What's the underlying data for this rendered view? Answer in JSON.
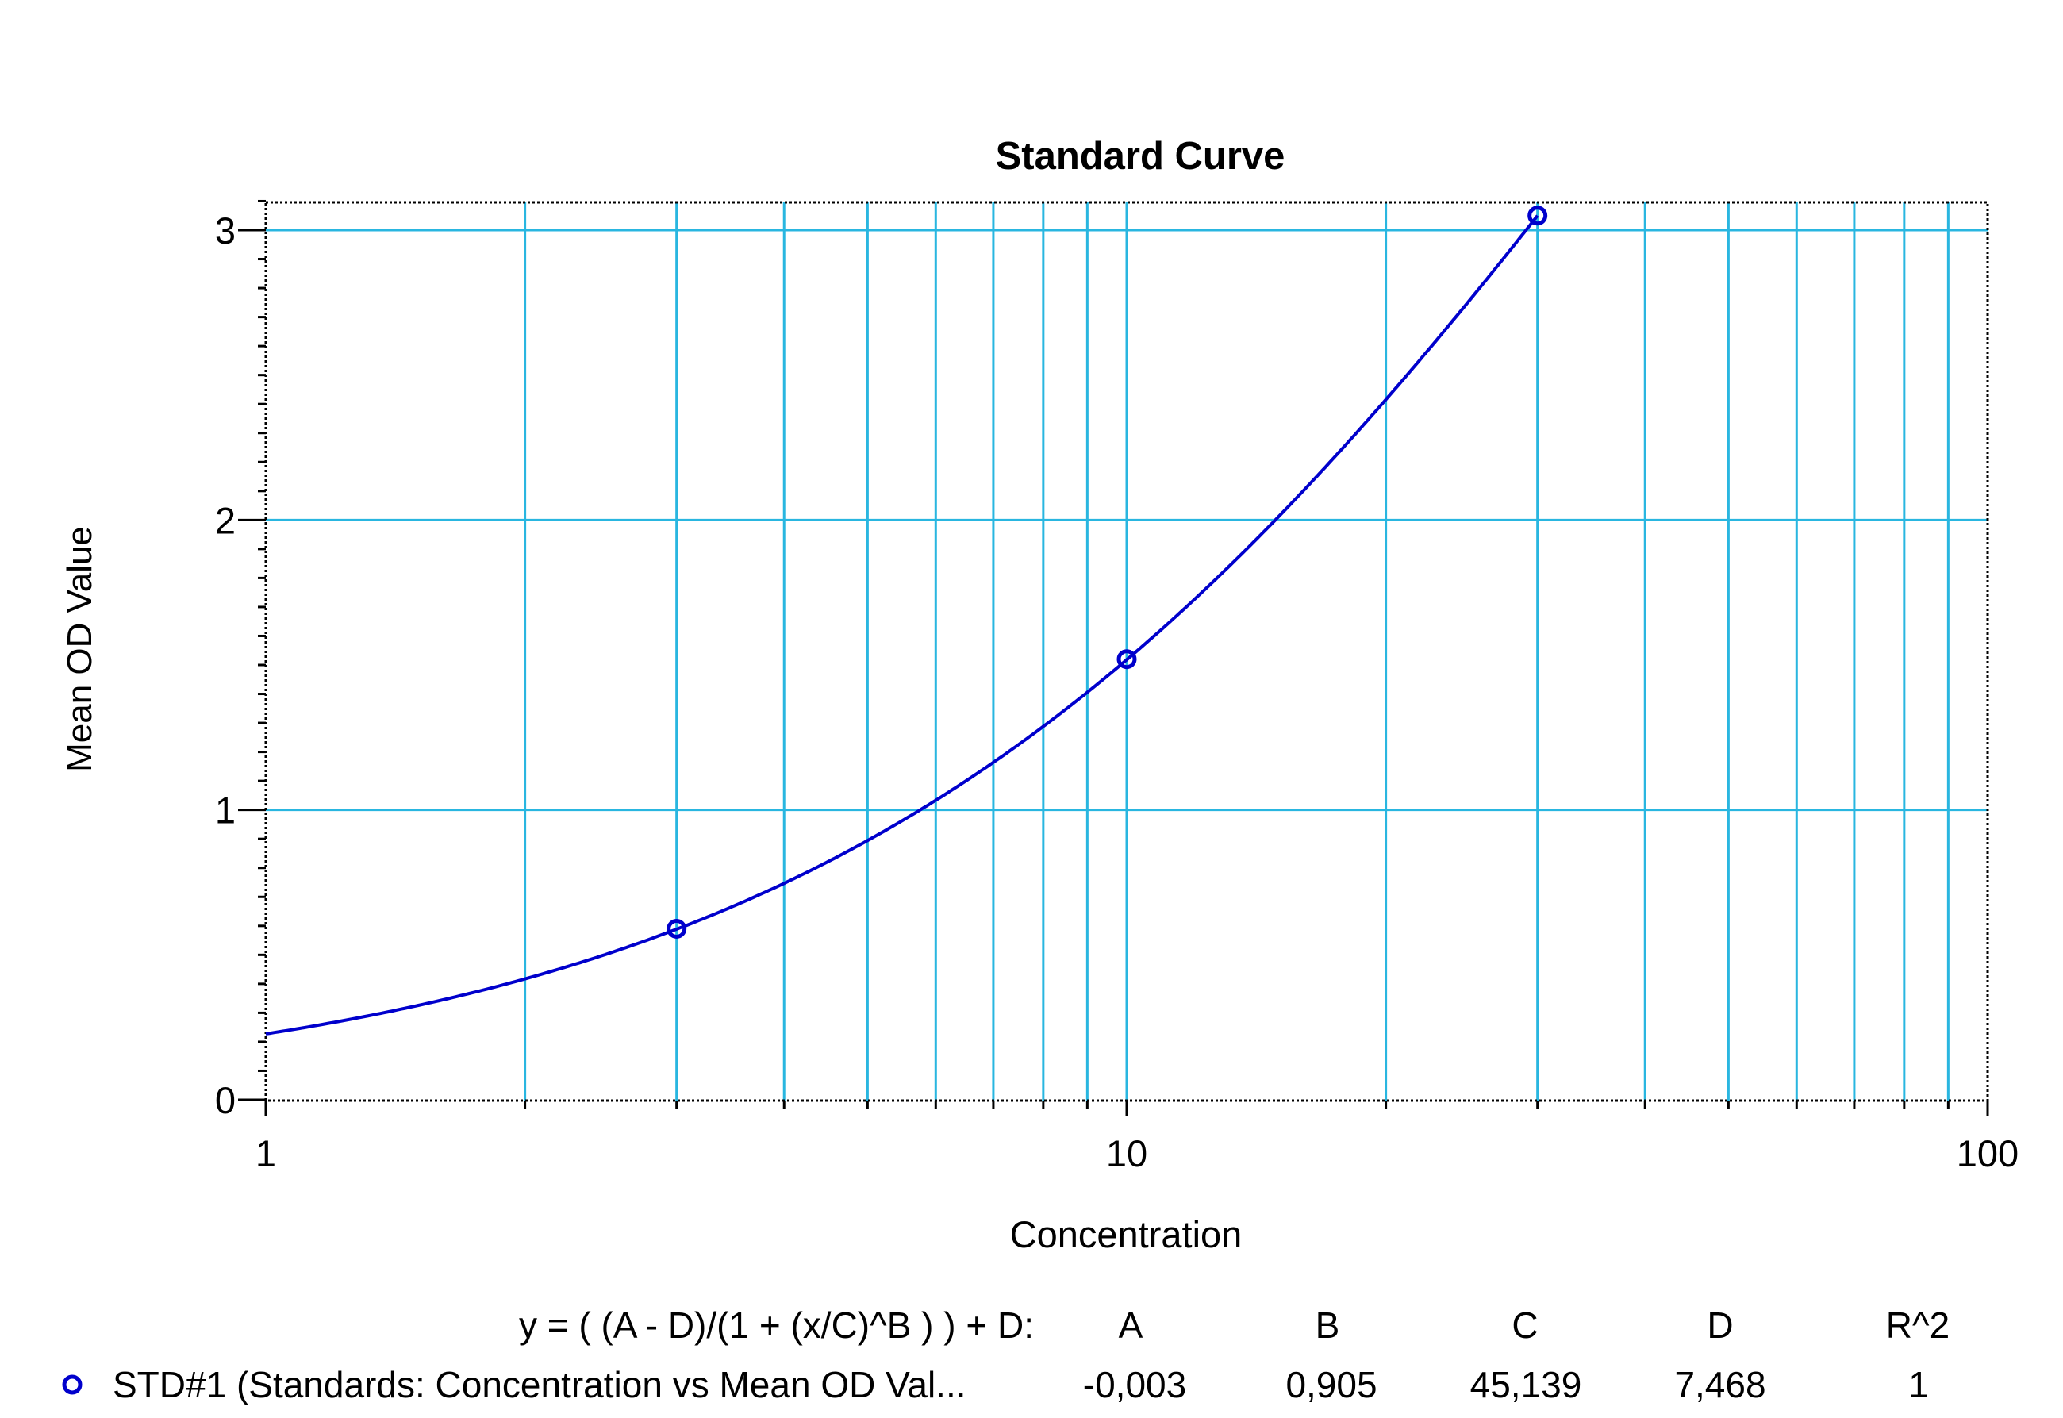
{
  "chart_data": {
    "type": "scatter",
    "title": "Standard Curve",
    "xlabel": "Concentration",
    "ylabel": "Mean OD Value",
    "x_scale": "log",
    "xlim": [
      1,
      100
    ],
    "ylim": [
      0,
      3.1
    ],
    "x_ticks": [
      "1",
      "10",
      "100"
    ],
    "y_ticks": [
      "0",
      "1",
      "2",
      "3"
    ],
    "grid": true,
    "colors": {
      "series": "#0000cc",
      "grid": "#29b6e0",
      "axis": "#000000",
      "text": "#000000"
    },
    "series": [
      {
        "name": "STD#1 (Standards: Concentration vs Mean OD Val...",
        "marker": "circle",
        "points": [
          {
            "x": 3,
            "y": 0.59
          },
          {
            "x": 10,
            "y": 1.52
          },
          {
            "x": 30,
            "y": 3.05
          }
        ],
        "fit": {
          "A": -0.003,
          "B": 0.905,
          "C": 45.139,
          "D": 7.468
        }
      }
    ],
    "legend": {
      "equation": "y = ( (A - D)/(1 + (x/C)^B ) ) + D:",
      "headers": [
        "A",
        "B",
        "C",
        "D",
        "R^2"
      ],
      "entry_label": "STD#1 (Standards: Concentration vs Mean OD Val...",
      "values": [
        "-0,003",
        "0,905",
        "45,139",
        "7,468",
        "1"
      ]
    }
  }
}
